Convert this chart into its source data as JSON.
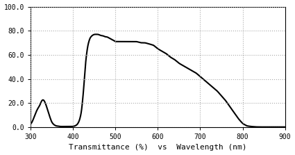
{
  "title": "",
  "xlabel": "Transmittance (%)  vs  Wavelength (nm)",
  "ylabel": "",
  "xlim": [
    300,
    900
  ],
  "ylim": [
    0,
    100
  ],
  "xticks": [
    300,
    400,
    500,
    600,
    700,
    800,
    900
  ],
  "yticks": [
    0.0,
    20.0,
    40.0,
    60.0,
    80.0,
    100.0
  ],
  "line_color": "#000000",
  "line_width": 1.5,
  "bg_color": "#ffffff",
  "grid_color": "#aaaaaa",
  "font_family": "monospace",
  "waypoints_x": [
    300,
    305,
    310,
    315,
    318,
    322,
    326,
    330,
    334,
    338,
    342,
    346,
    350,
    355,
    360,
    365,
    370,
    375,
    380,
    385,
    390,
    395,
    400,
    405,
    410,
    415,
    420,
    425,
    430,
    435,
    440,
    445,
    450,
    455,
    460,
    465,
    470,
    475,
    480,
    485,
    490,
    495,
    500,
    510,
    520,
    530,
    540,
    550,
    560,
    570,
    580,
    590,
    600,
    610,
    620,
    630,
    640,
    650,
    660,
    670,
    680,
    690,
    700,
    710,
    720,
    730,
    740,
    750,
    760,
    770,
    780,
    790,
    800,
    810,
    820,
    830,
    840,
    900
  ],
  "waypoints_y": [
    2,
    5,
    10,
    14,
    16,
    18,
    22,
    23,
    21,
    17,
    12,
    8,
    4,
    2,
    1,
    0.8,
    0.5,
    0.5,
    0.5,
    0.5,
    0.5,
    0.5,
    0.5,
    1,
    2,
    5,
    12,
    30,
    55,
    68,
    74,
    76,
    77,
    77,
    77,
    76,
    76,
    75,
    75,
    74,
    73,
    72,
    71,
    71,
    71,
    71,
    71,
    71,
    70,
    70,
    69,
    68,
    65,
    63,
    61,
    58,
    56,
    53,
    51,
    49,
    47,
    45,
    42,
    39,
    36,
    33,
    30,
    26,
    22,
    17,
    12,
    7,
    3,
    1,
    0.5,
    0.2,
    0.1,
    0.1
  ]
}
